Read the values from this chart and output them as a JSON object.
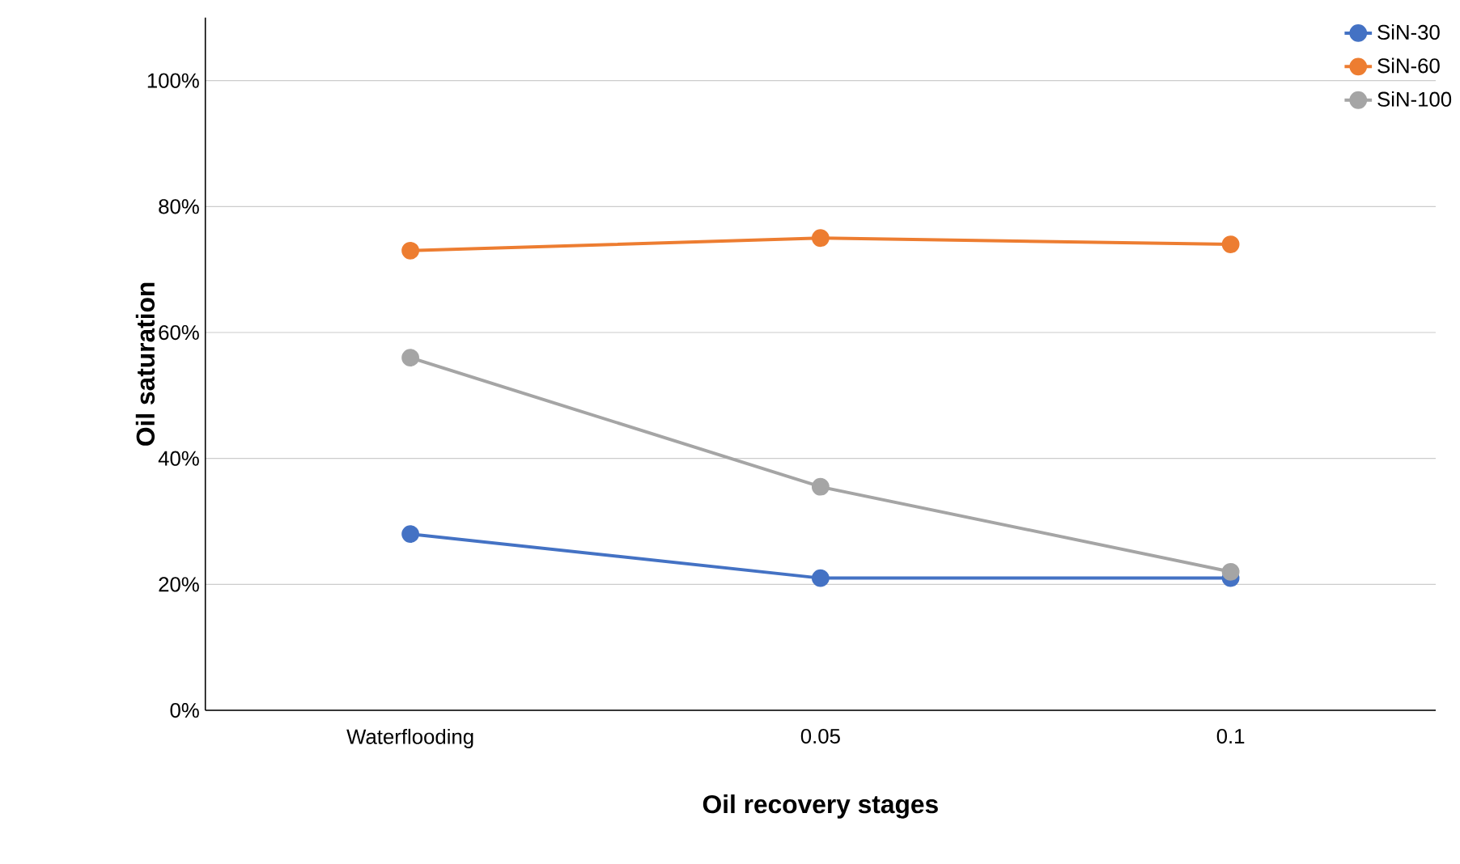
{
  "chart_data": {
    "type": "line",
    "xlabel": "Oil recovery stages",
    "ylabel": "Oil saturation",
    "categories": [
      "Waterflooding",
      "0.05",
      "0.1"
    ],
    "series": [
      {
        "name": "SiN-30",
        "color": "#4472c4",
        "values": [
          28,
          21,
          21
        ]
      },
      {
        "name": "SiN-60",
        "color": "#ed7d31",
        "values": [
          73,
          75,
          74
        ]
      },
      {
        "name": "SiN-100",
        "color": "#a5a5a5",
        "values": [
          56,
          35.5,
          22
        ]
      }
    ],
    "ylim": [
      0,
      110
    ],
    "yticks": [
      {
        "value": 0,
        "label": "0%"
      },
      {
        "value": 20,
        "label": "20%"
      },
      {
        "value": 40,
        "label": "40%"
      },
      {
        "value": 60,
        "label": "60%"
      },
      {
        "value": 80,
        "label": "80%"
      },
      {
        "value": 100,
        "label": "100%"
      }
    ],
    "grid": "y",
    "legend": "top right",
    "marker": "circle",
    "line_style": "solid"
  }
}
